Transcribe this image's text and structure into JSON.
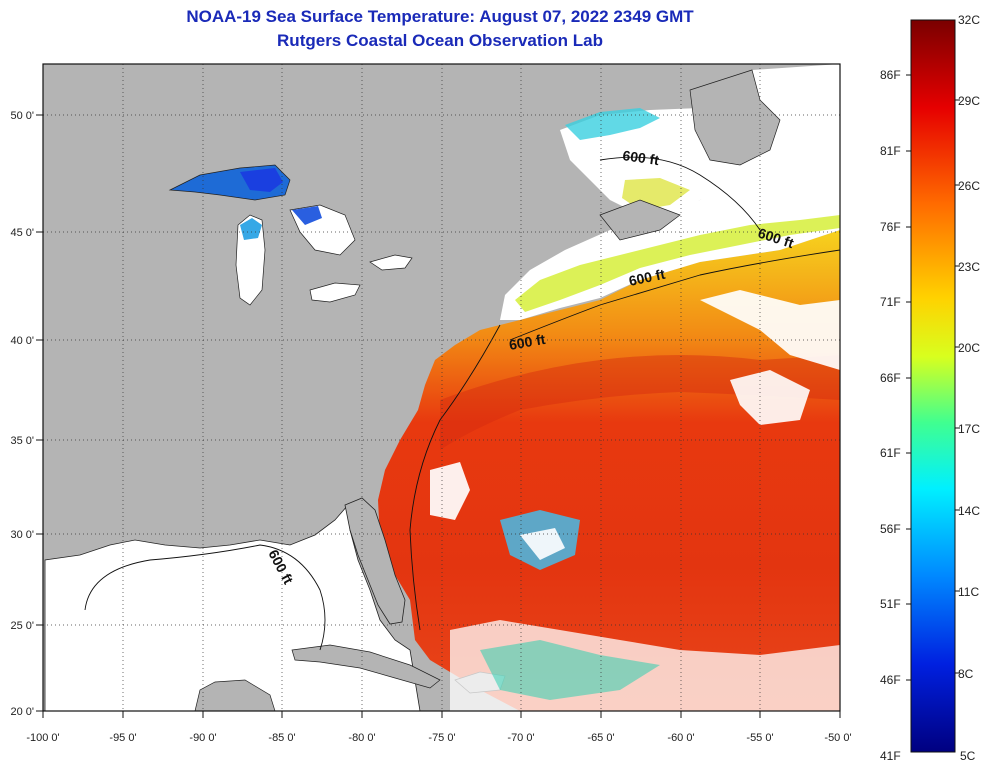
{
  "title": "NOAA-19 Sea Surface Temperature:  August 07, 2022 2349 GMT",
  "subtitle": "Rutgers Coastal Ocean Observation Lab",
  "lat_labels": [
    "50 0'",
    "45 0'",
    "40 0'",
    "35 0'",
    "30 0'",
    "25 0'",
    "20 0'"
  ],
  "lon_labels": [
    "-100 0'",
    "-95 0'",
    "-90 0'",
    "-85 0'",
    "-80 0'",
    "-75 0'",
    "-70 0'",
    "-65 0'",
    "-60 0'",
    "-55 0'",
    "-50 0'"
  ],
  "contour_label": "600 ft",
  "colorbar": {
    "celsius": [
      "32C",
      "29C",
      "26C",
      "23C",
      "20C",
      "17C",
      "14C",
      "11C",
      "8C",
      "5C"
    ],
    "fahrenheit": [
      "86F",
      "81F",
      "76F",
      "71F",
      "66F",
      "61F",
      "56F",
      "51F",
      "46F",
      "41F"
    ]
  },
  "colors": {
    "land": "#b4b4b4",
    "cloud": "#ffffff",
    "title": "#1a2ab8",
    "warm_ocean": "#e83212"
  }
}
